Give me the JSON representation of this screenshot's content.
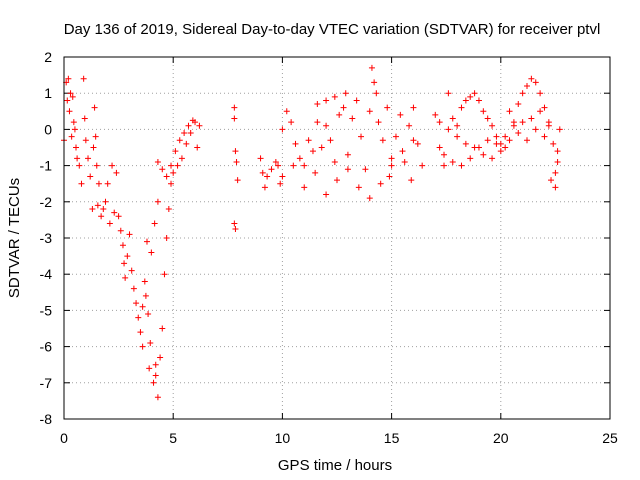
{
  "chart_data": {
    "type": "scatter",
    "title": "Day 136 of 2019, Sidereal Day-to-day VTEC variation (SDTVAR) for receiver ptvl",
    "xlabel": "GPS time / hours",
    "ylabel": "SDTVAR / TECUs",
    "xlim": [
      0,
      25
    ],
    "ylim": [
      -8,
      2
    ],
    "xticks": [
      0,
      5,
      10,
      15,
      20,
      25
    ],
    "yticks": [
      -8,
      -7,
      -6,
      -5,
      -4,
      -3,
      -2,
      -1,
      0,
      1,
      2
    ],
    "grid": true,
    "marker": "+",
    "color": "#ff0000",
    "series": [
      {
        "name": "SDTVAR",
        "points": [
          [
            0.0,
            -0.3
          ],
          [
            0.1,
            1.3
          ],
          [
            0.15,
            0.8
          ],
          [
            0.2,
            1.4
          ],
          [
            0.25,
            0.5
          ],
          [
            0.3,
            1.0
          ],
          [
            0.35,
            -0.2
          ],
          [
            0.4,
            0.9
          ],
          [
            0.45,
            0.2
          ],
          [
            0.5,
            0.0
          ],
          [
            0.55,
            -0.5
          ],
          [
            0.6,
            -0.8
          ],
          [
            0.7,
            -1.0
          ],
          [
            0.8,
            -1.5
          ],
          [
            0.9,
            1.4
          ],
          [
            0.95,
            0.3
          ],
          [
            1.0,
            -0.3
          ],
          [
            1.1,
            -0.8
          ],
          [
            1.2,
            -1.3
          ],
          [
            1.3,
            -2.2
          ],
          [
            1.35,
            -0.5
          ],
          [
            1.4,
            0.6
          ],
          [
            1.45,
            -0.2
          ],
          [
            1.5,
            -1.0
          ],
          [
            1.55,
            -2.1
          ],
          [
            1.6,
            -1.5
          ],
          [
            1.7,
            -2.4
          ],
          [
            1.8,
            -2.2
          ],
          [
            1.9,
            -2.0
          ],
          [
            2.0,
            -1.5
          ],
          [
            2.1,
            -2.6
          ],
          [
            2.2,
            -1.0
          ],
          [
            2.3,
            -2.3
          ],
          [
            2.4,
            -1.2
          ],
          [
            2.5,
            -2.4
          ],
          [
            2.6,
            -2.8
          ],
          [
            2.7,
            -3.2
          ],
          [
            2.75,
            -3.7
          ],
          [
            2.8,
            -4.1
          ],
          [
            2.9,
            -3.5
          ],
          [
            3.0,
            -2.9
          ],
          [
            3.1,
            -3.9
          ],
          [
            3.2,
            -4.4
          ],
          [
            3.3,
            -4.8
          ],
          [
            3.4,
            -5.2
          ],
          [
            3.5,
            -5.6
          ],
          [
            3.6,
            -6.0
          ],
          [
            3.7,
            -4.2
          ],
          [
            3.8,
            -3.1
          ],
          [
            3.9,
            -6.6
          ],
          [
            4.0,
            -3.4
          ],
          [
            4.1,
            -7.0
          ],
          [
            4.15,
            -2.6
          ],
          [
            4.2,
            -6.5
          ],
          [
            4.3,
            -2.0
          ],
          [
            4.4,
            -6.3
          ],
          [
            4.5,
            -5.5
          ],
          [
            4.6,
            -4.0
          ],
          [
            4.7,
            -3.0
          ],
          [
            4.8,
            -2.2
          ],
          [
            4.9,
            -1.5
          ],
          [
            5.0,
            -1.2
          ],
          [
            5.2,
            -1.0
          ],
          [
            5.4,
            -0.8
          ],
          [
            5.6,
            -0.4
          ],
          [
            5.8,
            -0.1
          ],
          [
            6.0,
            0.2
          ],
          [
            6.1,
            -0.5
          ],
          [
            6.2,
            0.1
          ],
          [
            4.3,
            -0.9
          ],
          [
            4.5,
            -1.1
          ],
          [
            4.7,
            -1.3
          ],
          [
            4.9,
            -1.0
          ],
          [
            5.1,
            -0.6
          ],
          [
            5.3,
            -0.3
          ],
          [
            5.5,
            -0.1
          ],
          [
            5.7,
            0.1
          ],
          [
            5.9,
            0.25
          ],
          [
            4.3,
            -7.4
          ],
          [
            4.2,
            -6.8
          ],
          [
            3.95,
            -5.9
          ],
          [
            3.85,
            -5.1
          ],
          [
            3.75,
            -4.6
          ],
          [
            3.6,
            -4.9
          ],
          [
            7.8,
            0.6
          ],
          [
            7.8,
            0.3
          ],
          [
            7.85,
            -0.6
          ],
          [
            7.9,
            -0.9
          ],
          [
            7.95,
            -1.4
          ],
          [
            7.8,
            -2.6
          ],
          [
            7.85,
            -2.75
          ],
          [
            9.0,
            -0.8
          ],
          [
            9.1,
            -1.2
          ],
          [
            9.2,
            -1.6
          ],
          [
            9.3,
            -1.3
          ],
          [
            9.5,
            -1.1
          ],
          [
            9.7,
            -0.9
          ],
          [
            9.8,
            -1.0
          ],
          [
            9.9,
            -1.5
          ],
          [
            10.0,
            0.0
          ],
          [
            10.2,
            0.5
          ],
          [
            10.4,
            0.2
          ],
          [
            10.6,
            -0.4
          ],
          [
            10.8,
            -0.8
          ],
          [
            11.0,
            -1.0
          ],
          [
            11.2,
            -0.3
          ],
          [
            11.4,
            -0.6
          ],
          [
            11.6,
            0.2
          ],
          [
            11.8,
            -0.5
          ],
          [
            12.0,
            0.1
          ],
          [
            12.2,
            -0.3
          ],
          [
            12.4,
            -0.9
          ],
          [
            12.6,
            0.4
          ],
          [
            12.8,
            0.6
          ],
          [
            13.0,
            -0.7
          ],
          [
            13.2,
            0.3
          ],
          [
            13.4,
            0.8
          ],
          [
            13.6,
            -0.2
          ],
          [
            13.8,
            -1.1
          ],
          [
            14.0,
            0.5
          ],
          [
            14.1,
            1.7
          ],
          [
            14.2,
            1.3
          ],
          [
            14.3,
            1.0
          ],
          [
            14.4,
            0.2
          ],
          [
            14.6,
            -0.3
          ],
          [
            14.8,
            0.6
          ],
          [
            15.0,
            -0.8
          ],
          [
            15.2,
            -0.2
          ],
          [
            15.4,
            0.4
          ],
          [
            15.6,
            -0.9
          ],
          [
            15.8,
            0.1
          ],
          [
            16.0,
            0.6
          ],
          [
            16.2,
            -0.4
          ],
          [
            16.4,
            -1.0
          ],
          [
            10.0,
            -1.3
          ],
          [
            10.5,
            -1.0
          ],
          [
            11.0,
            -1.6
          ],
          [
            11.5,
            -1.2
          ],
          [
            12.0,
            -1.8
          ],
          [
            12.5,
            -1.4
          ],
          [
            13.0,
            -1.1
          ],
          [
            13.5,
            -1.6
          ],
          [
            14.0,
            -1.9
          ],
          [
            14.5,
            -1.5
          ],
          [
            15.0,
            -1.0
          ],
          [
            15.5,
            -0.6
          ],
          [
            16.0,
            -0.3
          ],
          [
            12.4,
            0.9
          ],
          [
            12.0,
            0.8
          ],
          [
            11.6,
            0.7
          ],
          [
            12.9,
            1.0
          ],
          [
            14.9,
            -1.3
          ],
          [
            15.9,
            -1.4
          ],
          [
            17.0,
            0.4
          ],
          [
            17.2,
            -0.5
          ],
          [
            17.4,
            -1.0
          ],
          [
            17.6,
            1.0
          ],
          [
            17.8,
            0.3
          ],
          [
            18.0,
            0.1
          ],
          [
            18.2,
            0.6
          ],
          [
            18.4,
            0.8
          ],
          [
            18.6,
            0.9
          ],
          [
            18.8,
            1.0
          ],
          [
            19.0,
            0.8
          ],
          [
            19.2,
            0.5
          ],
          [
            19.4,
            0.3
          ],
          [
            19.6,
            0.1
          ],
          [
            19.8,
            -0.2
          ],
          [
            20.0,
            -0.4
          ],
          [
            20.2,
            -0.5
          ],
          [
            20.4,
            -0.3
          ],
          [
            20.6,
            0.2
          ],
          [
            20.8,
            0.7
          ],
          [
            21.0,
            1.0
          ],
          [
            21.2,
            1.2
          ],
          [
            21.4,
            1.4
          ],
          [
            21.6,
            1.3
          ],
          [
            21.8,
            1.0
          ],
          [
            22.0,
            0.6
          ],
          [
            22.2,
            0.2
          ],
          [
            22.4,
            -0.4
          ],
          [
            22.5,
            -1.2
          ],
          [
            22.6,
            -0.6
          ],
          [
            22.7,
            0.0
          ],
          [
            17.4,
            -0.7
          ],
          [
            17.8,
            -0.9
          ],
          [
            18.2,
            -1.0
          ],
          [
            18.6,
            -0.8
          ],
          [
            19.0,
            -0.5
          ],
          [
            19.4,
            -0.3
          ],
          [
            19.8,
            -0.4
          ],
          [
            20.2,
            -0.2
          ],
          [
            20.6,
            0.1
          ],
          [
            21.0,
            0.2
          ],
          [
            21.4,
            0.3
          ],
          [
            21.8,
            0.5
          ],
          [
            22.2,
            0.1
          ],
          [
            17.2,
            0.2
          ],
          [
            17.6,
            0.0
          ],
          [
            18.0,
            -0.2
          ],
          [
            18.4,
            -0.4
          ],
          [
            18.8,
            -0.5
          ],
          [
            19.2,
            -0.7
          ],
          [
            19.6,
            -0.8
          ],
          [
            20.0,
            -0.6
          ],
          [
            20.4,
            0.5
          ],
          [
            20.8,
            -0.1
          ],
          [
            21.2,
            -0.3
          ],
          [
            21.6,
            0.0
          ],
          [
            22.0,
            -0.2
          ],
          [
            22.3,
            -1.4
          ],
          [
            22.5,
            -1.6
          ],
          [
            22.6,
            -0.9
          ]
        ]
      }
    ]
  }
}
